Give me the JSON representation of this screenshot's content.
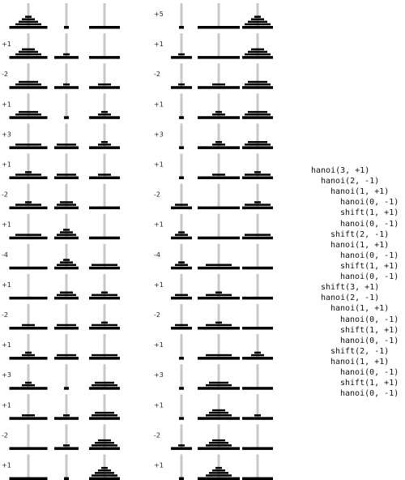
{
  "colors": {
    "peg": "#c8c8c8",
    "disk": "#000000",
    "base": "#000000"
  },
  "left_column": {
    "moves": [
      "",
      "+1",
      "-2",
      "+1",
      "+3",
      "+1",
      "-2",
      "+1",
      "-4",
      "+1",
      "-2",
      "+1",
      "+3",
      "+1",
      "-2",
      "+1"
    ],
    "states": [
      [
        [
          4,
          3,
          2,
          1
        ],
        [],
        []
      ],
      [
        [
          4,
          3,
          2
        ],
        [
          1
        ],
        []
      ],
      [
        [
          4,
          3
        ],
        [
          1
        ],
        [
          2
        ]
      ],
      [
        [
          4,
          3
        ],
        [],
        [
          2,
          1
        ]
      ],
      [
        [
          4
        ],
        [
          3
        ],
        [
          2,
          1
        ]
      ],
      [
        [
          4,
          1
        ],
        [
          3
        ],
        [
          2
        ]
      ],
      [
        [
          4,
          1
        ],
        [
          3,
          2
        ],
        []
      ],
      [
        [
          4
        ],
        [
          3,
          2,
          1
        ],
        []
      ],
      [
        [],
        [
          3,
          2,
          1
        ],
        [
          4
        ]
      ],
      [
        [],
        [
          3,
          2
        ],
        [
          4,
          1
        ]
      ],
      [
        [
          2
        ],
        [
          3
        ],
        [
          4,
          1
        ]
      ],
      [
        [
          2,
          1
        ],
        [
          3
        ],
        [
          4
        ]
      ],
      [
        [
          2,
          1
        ],
        [],
        [
          4,
          3
        ]
      ],
      [
        [
          2
        ],
        [
          1
        ],
        [
          4,
          3
        ]
      ],
      [
        [],
        [
          1
        ],
        [
          4,
          3,
          2
        ]
      ],
      [
        [],
        [],
        [
          4,
          3,
          2,
          1
        ]
      ]
    ]
  },
  "right_column": {
    "moves": [
      "+5",
      "+1",
      "-2",
      "+1",
      "+3",
      "+1",
      "-2",
      "+1",
      "-4",
      "+1",
      "-2",
      "+1",
      "+3",
      "+1",
      "-2",
      "+1"
    ],
    "states": [
      [
        [],
        [],
        [
          4,
          3,
          2,
          1
        ]
      ],
      [
        [
          1
        ],
        [],
        [
          4,
          3,
          2
        ]
      ],
      [
        [
          1
        ],
        [
          2
        ],
        [
          4,
          3
        ]
      ],
      [
        [],
        [
          2,
          1
        ],
        [
          4,
          3
        ]
      ],
      [
        [],
        [
          2,
          1
        ],
        [
          4,
          3
        ]
      ],
      [
        [],
        [
          2
        ],
        [
          4,
          1
        ]
      ],
      [
        [
          2
        ],
        [],
        [
          4,
          1
        ]
      ],
      [
        [
          2,
          1
        ],
        [],
        [
          4
        ]
      ],
      [
        [
          2,
          1
        ],
        [
          4
        ],
        []
      ],
      [
        [
          2
        ],
        [
          4,
          1
        ],
        []
      ],
      [
        [
          2
        ],
        [
          4,
          1
        ],
        []
      ],
      [
        [],
        [
          4
        ],
        [
          2,
          1
        ]
      ],
      [
        [],
        [
          4,
          3
        ],
        []
      ],
      [
        [],
        [
          4,
          3,
          2
        ],
        [
          1
        ]
      ],
      [
        [
          1
        ],
        [
          4,
          3,
          2
        ],
        []
      ],
      [
        [],
        [
          4,
          3,
          2,
          1
        ],
        []
      ]
    ]
  },
  "trace": [
    {
      "depth": 0,
      "text": "hanoi(3, +1)"
    },
    {
      "depth": 1,
      "text": "hanoi(2, -1)"
    },
    {
      "depth": 2,
      "text": "hanoi(1, +1)"
    },
    {
      "depth": 3,
      "text": "hanoi(0, -1)"
    },
    {
      "depth": 3,
      "text": "shift(1, +1)"
    },
    {
      "depth": 3,
      "text": "hanoi(0, -1)"
    },
    {
      "depth": 2,
      "text": "shift(2, -1)"
    },
    {
      "depth": 2,
      "text": "hanoi(1, +1)"
    },
    {
      "depth": 3,
      "text": "hanoi(0, -1)"
    },
    {
      "depth": 3,
      "text": "shift(1, +1)"
    },
    {
      "depth": 3,
      "text": "hanoi(0, -1)"
    },
    {
      "depth": 1,
      "text": "shift(3, +1)"
    },
    {
      "depth": 1,
      "text": "hanoi(2, -1)"
    },
    {
      "depth": 2,
      "text": "hanoi(1, +1)"
    },
    {
      "depth": 3,
      "text": "hanoi(0, -1)"
    },
    {
      "depth": 3,
      "text": "shift(1, +1)"
    },
    {
      "depth": 3,
      "text": "hanoi(0, -1)"
    },
    {
      "depth": 2,
      "text": "shift(2, -1)"
    },
    {
      "depth": 2,
      "text": "hanoi(1, +1)"
    },
    {
      "depth": 3,
      "text": "hanoi(0, -1)"
    },
    {
      "depth": 3,
      "text": "shift(1, +1)"
    },
    {
      "depth": 3,
      "text": "hanoi(0, -1)"
    }
  ]
}
